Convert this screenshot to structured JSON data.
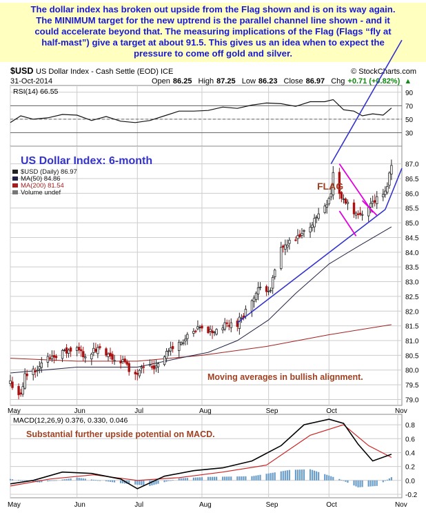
{
  "annotation": {
    "lines": [
      "The dollar index has broken out upside from the Flag shown and is on its way again.",
      "The MINIMUM target for the new uptrend is the parallel channel line shown - and it",
      "could accelerate beyond that. The measuring implications of the Flag (Flags “fly at",
      "half-mast”) give a target at about 91.5. This gives us an idea when to expect the",
      "pressure to come off gold and silver."
    ]
  },
  "header": {
    "symbol": "$USD",
    "name": "US Dollar Index - Cash Settle (EOD) ICE",
    "source": "© StockCharts.com",
    "date": "31-Oct-2014",
    "open_label": "Open",
    "open": "86.25",
    "high_label": "High",
    "high": "87.25",
    "low_label": "Low",
    "low": "86.23",
    "close_label": "Close",
    "close": "86.97",
    "chg_label": "Chg",
    "chg": "+0.71 (+0.82%)",
    "chg_arrow": "▲"
  },
  "colors": {
    "note_bg": "#ffffc0",
    "note_text": "#1a1ad6",
    "title_text": "#3333cc",
    "trend_line": "#3333cc",
    "flag": "#e000e0",
    "flag_label": "#a04020",
    "candle_up": "#222222",
    "candle_down": "#aa1111",
    "ma50": "#222244",
    "ma200": "#a02020",
    "macd_line": "#000000",
    "signal_line": "#cc2222",
    "histogram": "#6a9ec8",
    "grid": "#cccccc",
    "panel_border": "#888888"
  },
  "chart_data": [
    {
      "type": "line",
      "panel": "rsi",
      "title": "RSI(14) 66.55",
      "y_ticks": [
        30,
        50,
        70,
        90
      ],
      "ylim": [
        10,
        100
      ],
      "reference_lines": [
        70,
        50,
        30
      ],
      "series": [
        {
          "name": "RSI(14)",
          "x": [
            "2014-05-01",
            "2014-05-06",
            "2014-05-12",
            "2014-05-19",
            "2014-05-26",
            "2014-06-02",
            "2014-06-09",
            "2014-06-16",
            "2014-06-23",
            "2014-06-30",
            "2014-07-07",
            "2014-07-14",
            "2014-07-21",
            "2014-07-28",
            "2014-08-04",
            "2014-08-11",
            "2014-08-18",
            "2014-08-25",
            "2014-09-01",
            "2014-09-08",
            "2014-09-15",
            "2014-09-22",
            "2014-09-29",
            "2014-10-03",
            "2014-10-08",
            "2014-10-13",
            "2014-10-17",
            "2014-10-22",
            "2014-10-27",
            "2014-10-31"
          ],
          "values": [
            45,
            55,
            50,
            52,
            57,
            56,
            48,
            54,
            47,
            45,
            48,
            55,
            62,
            62,
            63,
            68,
            66,
            71,
            74,
            73,
            69,
            76,
            76,
            79,
            64,
            62,
            55,
            58,
            56,
            66.55
          ]
        }
      ]
    },
    {
      "type": "candlestick",
      "panel": "price",
      "title": "US Dollar Index: 6-month",
      "legend": [
        {
          "label": "$USD (Daily) 86.97"
        },
        {
          "label": "MA(50) 84.86"
        },
        {
          "label": "MA(200) 81.54"
        },
        {
          "label": "Volume undef"
        }
      ],
      "x_ticks": [
        "May",
        "Jun",
        "Jul",
        "Aug",
        "Sep",
        "Oct",
        "Nov"
      ],
      "y_ticks": [
        79.0,
        79.5,
        80.0,
        80.5,
        81.0,
        81.5,
        82.0,
        82.5,
        83.0,
        83.5,
        84.0,
        84.5,
        85.0,
        85.5,
        86.0,
        86.5,
        87.0
      ],
      "ylim": [
        78.8,
        87.6
      ],
      "ohlc_path": {
        "x": [
          "2014-05-01",
          "2014-05-06",
          "2014-05-08",
          "2014-05-12",
          "2014-05-16",
          "2014-05-21",
          "2014-05-27",
          "2014-06-02",
          "2014-06-06",
          "2014-06-12",
          "2014-06-18",
          "2014-06-24",
          "2014-06-30",
          "2014-07-03",
          "2014-07-09",
          "2014-07-15",
          "2014-07-21",
          "2014-07-25",
          "2014-07-31",
          "2014-08-06",
          "2014-08-12",
          "2014-08-18",
          "2014-08-22",
          "2014-08-28",
          "2014-09-03",
          "2014-09-08",
          "2014-09-12",
          "2014-09-17",
          "2014-09-23",
          "2014-09-29",
          "2014-10-02",
          "2014-10-03",
          "2014-10-07",
          "2014-10-10",
          "2014-10-15",
          "2014-10-20",
          "2014-10-24",
          "2014-10-28",
          "2014-10-31"
        ],
        "close": [
          79.6,
          79.1,
          79.8,
          80.0,
          80.2,
          80.5,
          80.6,
          80.7,
          80.5,
          80.7,
          80.4,
          80.3,
          79.8,
          80.2,
          80.1,
          80.6,
          80.9,
          81.1,
          81.4,
          81.3,
          81.5,
          81.6,
          82.0,
          82.7,
          82.8,
          84.1,
          84.3,
          84.5,
          85.0,
          85.6,
          86.0,
          86.7,
          85.8,
          85.7,
          85.2,
          85.6,
          85.8,
          86.0,
          86.97
        ]
      },
      "annotations": [
        {
          "text": "FLAG"
        },
        {
          "text": "Moving averages in bullish alignment."
        }
      ],
      "series": [
        {
          "name": "MA(50)",
          "x": [
            "2014-05-01",
            "2014-06-02",
            "2014-07-01",
            "2014-07-21",
            "2014-08-04",
            "2014-08-18",
            "2014-09-02",
            "2014-09-15",
            "2014-10-01",
            "2014-10-15",
            "2014-10-31"
          ],
          "values": [
            79.9,
            80.1,
            80.1,
            80.4,
            80.6,
            81.0,
            81.7,
            82.6,
            83.6,
            84.2,
            84.86
          ]
        },
        {
          "name": "MA(200)",
          "x": [
            "2014-05-01",
            "2014-06-02",
            "2014-07-01",
            "2014-08-01",
            "2014-09-01",
            "2014-10-01",
            "2014-10-31"
          ],
          "values": [
            80.4,
            80.3,
            80.3,
            80.5,
            80.8,
            81.2,
            81.54
          ]
        }
      ]
    },
    {
      "type": "line",
      "panel": "macd",
      "title": "MACD(12,26,9) 0.376, 0.330, 0.046",
      "annotation": "Substantial further upside potential on MACD.",
      "y_ticks": [
        -0.2,
        0.0,
        0.2,
        0.4,
        0.6,
        0.8
      ],
      "ylim": [
        -0.25,
        0.95
      ],
      "series": [
        {
          "name": "MACD(12,26,9)",
          "x": [
            "2014-05-01",
            "2014-05-12",
            "2014-05-26",
            "2014-06-09",
            "2014-06-23",
            "2014-07-01",
            "2014-07-14",
            "2014-07-28",
            "2014-08-11",
            "2014-08-25",
            "2014-09-08",
            "2014-09-19",
            "2014-10-01",
            "2014-10-08",
            "2014-10-15",
            "2014-10-22",
            "2014-10-31"
          ],
          "values": [
            -0.05,
            0.0,
            0.12,
            0.1,
            0.02,
            -0.12,
            0.06,
            0.14,
            0.18,
            0.28,
            0.5,
            0.8,
            0.88,
            0.82,
            0.52,
            0.28,
            0.376
          ]
        },
        {
          "name": "Signal",
          "x": [
            "2014-05-01",
            "2014-05-20",
            "2014-06-10",
            "2014-07-01",
            "2014-07-21",
            "2014-08-11",
            "2014-09-01",
            "2014-09-22",
            "2014-10-08",
            "2014-10-20",
            "2014-10-31"
          ],
          "values": [
            -0.08,
            0.02,
            0.08,
            0.0,
            0.04,
            0.12,
            0.22,
            0.65,
            0.8,
            0.5,
            0.33
          ]
        },
        {
          "name": "Histogram",
          "x": [
            "2014-05-01",
            "2014-05-15",
            "2014-06-02",
            "2014-06-23",
            "2014-07-07",
            "2014-07-21",
            "2014-08-04",
            "2014-08-25",
            "2014-09-12",
            "2014-09-22",
            "2014-10-06",
            "2014-10-15",
            "2014-10-24",
            "2014-10-31"
          ],
          "values": [
            0.02,
            -0.03,
            0.04,
            -0.04,
            -0.08,
            0.03,
            0.05,
            0.06,
            0.15,
            0.16,
            0.02,
            -0.1,
            -0.08,
            0.046
          ]
        }
      ]
    }
  ]
}
